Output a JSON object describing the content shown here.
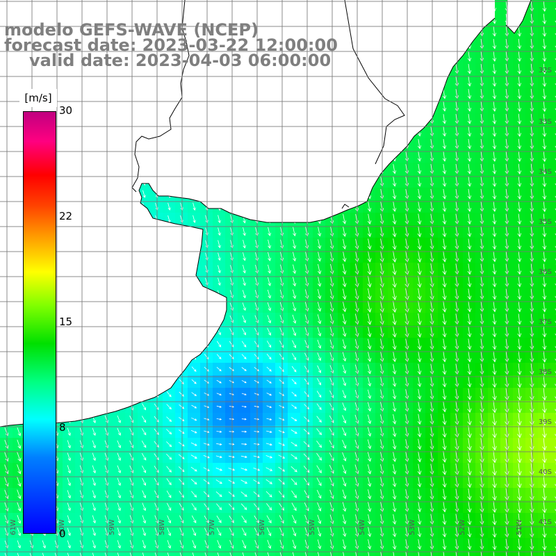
{
  "title": {
    "line1": "modelo GEFS-WAVE (NCEP)",
    "line2": "forecast date: 2023-03-22 12:00:00",
    "line3": "valid date: 2023-04-03 06:00:00"
  },
  "colorbar": {
    "unit": "[m/s]",
    "ticks": [
      "30",
      "22",
      "15",
      "8",
      "0"
    ],
    "range": [
      0,
      30
    ],
    "stops": [
      "#0000ff",
      "#0080ff",
      "#00ffff",
      "#00ff80",
      "#00e000",
      "#80ff00",
      "#ffff00",
      "#ffa000",
      "#ff4000",
      "#ff0000",
      "#ff0080",
      "#c00080"
    ]
  },
  "grid": {
    "lat_labels": [
      "32S",
      "33S",
      "34S",
      "35S",
      "36S",
      "37S",
      "38S",
      "39S",
      "40S",
      "41S"
    ],
    "lon_labels": [
      "61W",
      "60W",
      "59W",
      "58W",
      "57W",
      "56W",
      "55W",
      "54W",
      "53W",
      "52W",
      "51W"
    ]
  },
  "map": {
    "field": "wind speed",
    "land_color": "#ffffff",
    "coast_color": "#000000",
    "grid_color": "#777777",
    "arrow_color": "#ffffff"
  }
}
